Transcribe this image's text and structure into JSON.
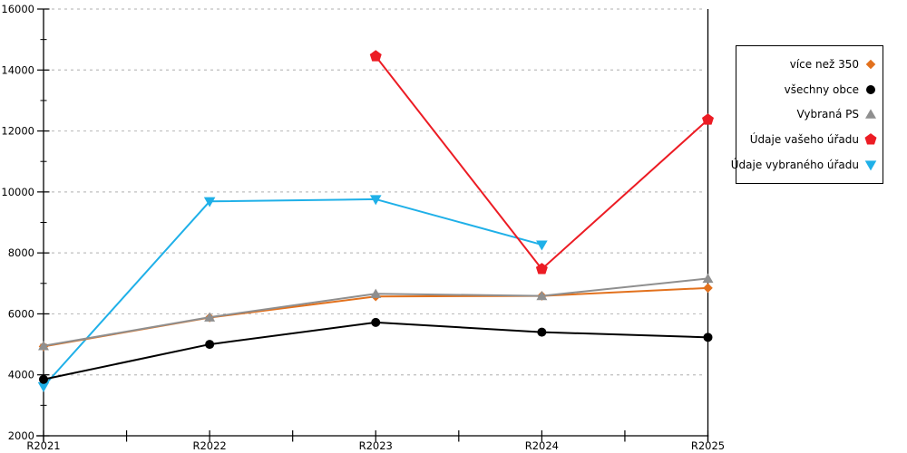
{
  "chart_data": {
    "type": "line",
    "title": "",
    "xlabel": "",
    "ylabel": "",
    "categories": [
      "R2021",
      "R2022",
      "R2023",
      "R2024",
      "R2025"
    ],
    "series": [
      {
        "name": "více než 350",
        "color": "#e2711d",
        "marker": "diamond",
        "values": [
          4930,
          5880,
          6570,
          6590,
          6850
        ]
      },
      {
        "name": "všechny obce",
        "color": "#000000",
        "marker": "circle",
        "values": [
          3850,
          5000,
          5720,
          5400,
          5230
        ]
      },
      {
        "name": "Vybraná PS",
        "color": "#8f8f8f",
        "marker": "triangle-up",
        "values": [
          4950,
          5890,
          6660,
          6590,
          7160
        ]
      },
      {
        "name": "Údaje vašeho úřadu",
        "color": "#ec1c24",
        "marker": "pentagon",
        "values": [
          null,
          null,
          14450,
          7470,
          12370
        ]
      },
      {
        "name": "Údaje vybraného úřadu",
        "color": "#1fb0e8",
        "marker": "triangle-down",
        "values": [
          3620,
          9690,
          9760,
          8270,
          null
        ]
      }
    ],
    "ylim": [
      2000,
      16000
    ],
    "ytick_step": 2000,
    "ytick_labels": [
      "2000",
      "4000",
      "6000",
      "8000",
      "10000",
      "12000",
      "14000",
      "16000"
    ],
    "grid": "horizontal-dotted",
    "legend_position": "right",
    "draw_order": [
      4,
      0,
      2,
      1,
      3
    ]
  },
  "colors": {
    "grid": "#bfbfbf",
    "axis": "#000000",
    "tick_text": "#000000",
    "background": "#ffffff"
  }
}
